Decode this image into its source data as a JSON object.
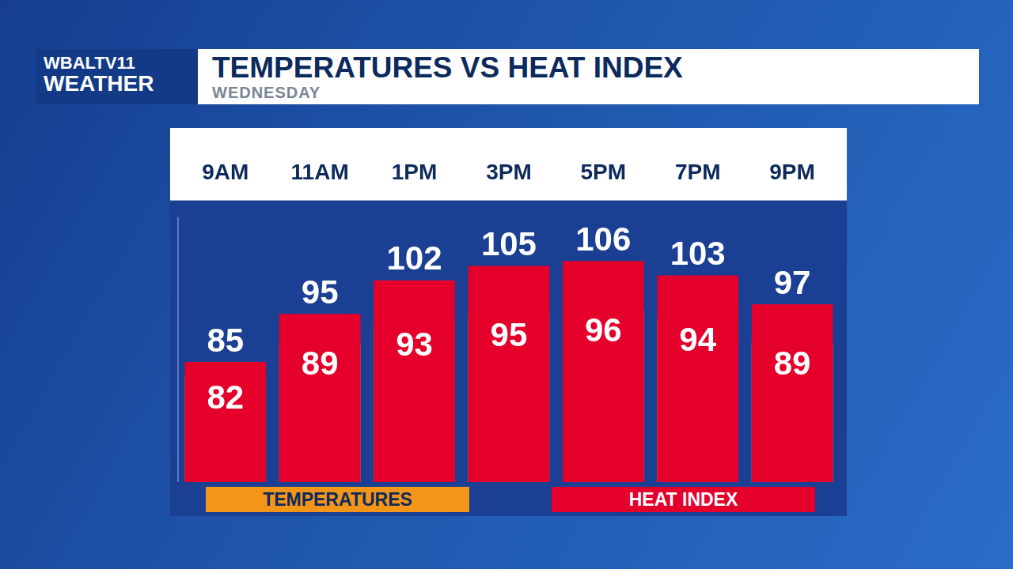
{
  "chart_data": {
    "type": "bar",
    "title": "TEMPERATURES VS HEAT INDEX",
    "subtitle": "WEDNESDAY",
    "logo": [
      "WBALTV11",
      "WEATHER"
    ],
    "categories": [
      "9AM",
      "11AM",
      "1PM",
      "3PM",
      "5PM",
      "7PM",
      "9PM"
    ],
    "series": [
      {
        "name": "TEMPERATURES",
        "color": "#f39519",
        "values": [
          82,
          89,
          93,
          95,
          96,
          94,
          89
        ]
      },
      {
        "name": "HEAT INDEX",
        "color": "#e4002b",
        "values": [
          85,
          95,
          102,
          105,
          106,
          103,
          97
        ]
      }
    ],
    "ylim": [
      60,
      115
    ],
    "stacked": false,
    "data_labels": true,
    "tick_labels": "x",
    "grid": false,
    "legend": "bottom"
  }
}
